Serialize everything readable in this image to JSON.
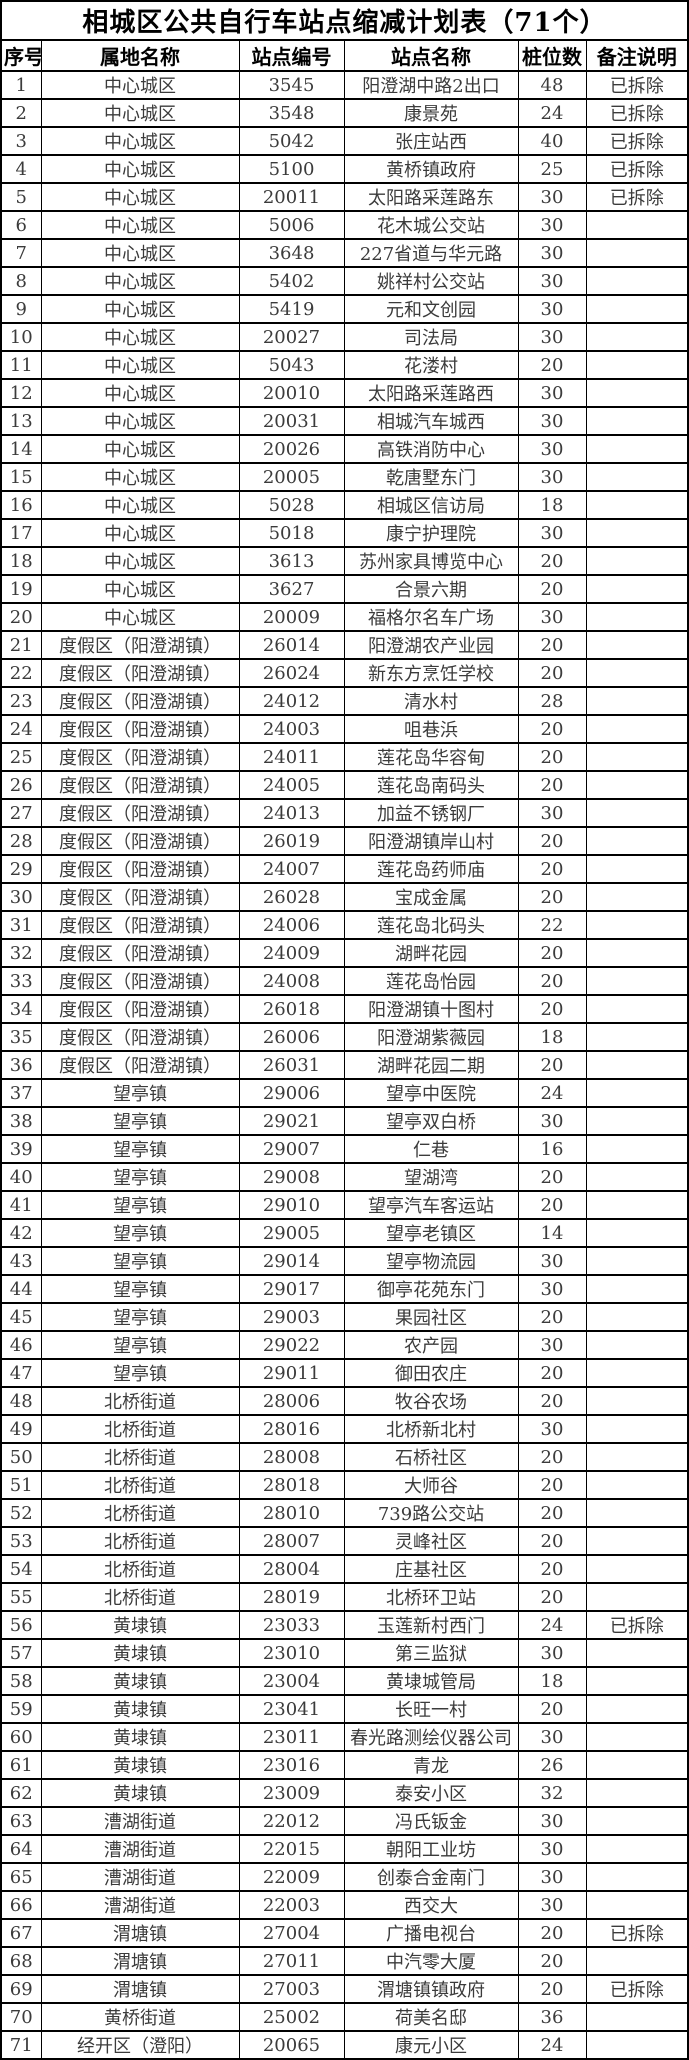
{
  "table": {
    "title": "相城区公共自行车站点缩减计划表（71个）",
    "columns": [
      "序号",
      "属地名称",
      "站点编号",
      "站点名称",
      "桩位数",
      "备注说明"
    ],
    "remark_removed_label": "已拆除",
    "rows": [
      [
        "1",
        "中心城区",
        "3545",
        "阳澄湖中路2出口",
        "48",
        "已拆除"
      ],
      [
        "2",
        "中心城区",
        "3548",
        "康景苑",
        "24",
        "已拆除"
      ],
      [
        "3",
        "中心城区",
        "5042",
        "张庄站西",
        "40",
        "已拆除"
      ],
      [
        "4",
        "中心城区",
        "5100",
        "黄桥镇政府",
        "25",
        "已拆除"
      ],
      [
        "5",
        "中心城区",
        "20011",
        "太阳路采莲路东",
        "30",
        "已拆除"
      ],
      [
        "6",
        "中心城区",
        "5006",
        "花木城公交站",
        "30",
        ""
      ],
      [
        "7",
        "中心城区",
        "3648",
        "227省道与华元路",
        "30",
        ""
      ],
      [
        "8",
        "中心城区",
        "5402",
        "姚祥村公交站",
        "30",
        ""
      ],
      [
        "9",
        "中心城区",
        "5419",
        "元和文创园",
        "30",
        ""
      ],
      [
        "10",
        "中心城区",
        "20027",
        "司法局",
        "30",
        ""
      ],
      [
        "11",
        "中心城区",
        "5043",
        "花溇村",
        "20",
        ""
      ],
      [
        "12",
        "中心城区",
        "20010",
        "太阳路采莲路西",
        "30",
        ""
      ],
      [
        "13",
        "中心城区",
        "20031",
        "相城汽车城西",
        "30",
        ""
      ],
      [
        "14",
        "中心城区",
        "20026",
        "高铁消防中心",
        "30",
        ""
      ],
      [
        "15",
        "中心城区",
        "20005",
        "乾唐墅东门",
        "30",
        ""
      ],
      [
        "16",
        "中心城区",
        "5028",
        "相城区信访局",
        "18",
        ""
      ],
      [
        "17",
        "中心城区",
        "5018",
        "康宁护理院",
        "30",
        ""
      ],
      [
        "18",
        "中心城区",
        "3613",
        "苏州家具博览中心",
        "20",
        ""
      ],
      [
        "19",
        "中心城区",
        "3627",
        "合景六期",
        "20",
        ""
      ],
      [
        "20",
        "中心城区",
        "20009",
        "福格尔名车广场",
        "30",
        ""
      ],
      [
        "21",
        "度假区（阳澄湖镇）",
        "26014",
        "阳澄湖农产业园",
        "20",
        ""
      ],
      [
        "22",
        "度假区（阳澄湖镇）",
        "26024",
        "新东方烹饪学校",
        "20",
        ""
      ],
      [
        "23",
        "度假区（阳澄湖镇）",
        "24012",
        "清水村",
        "28",
        ""
      ],
      [
        "24",
        "度假区（阳澄湖镇）",
        "24003",
        "咀巷浜",
        "20",
        ""
      ],
      [
        "25",
        "度假区（阳澄湖镇）",
        "24011",
        "莲花岛华容甸",
        "20",
        ""
      ],
      [
        "26",
        "度假区（阳澄湖镇）",
        "24005",
        "莲花岛南码头",
        "20",
        ""
      ],
      [
        "27",
        "度假区（阳澄湖镇）",
        "24013",
        "加益不锈钢厂",
        "30",
        ""
      ],
      [
        "28",
        "度假区（阳澄湖镇）",
        "26019",
        "阳澄湖镇岸山村",
        "20",
        ""
      ],
      [
        "29",
        "度假区（阳澄湖镇）",
        "24007",
        "莲花岛药师庙",
        "20",
        ""
      ],
      [
        "30",
        "度假区（阳澄湖镇）",
        "26028",
        "宝成金属",
        "20",
        ""
      ],
      [
        "31",
        "度假区（阳澄湖镇）",
        "24006",
        "莲花岛北码头",
        "22",
        ""
      ],
      [
        "32",
        "度假区（阳澄湖镇）",
        "24009",
        "湖畔花园",
        "20",
        ""
      ],
      [
        "33",
        "度假区（阳澄湖镇）",
        "24008",
        "莲花岛怡园",
        "20",
        ""
      ],
      [
        "34",
        "度假区（阳澄湖镇）",
        "26018",
        "阳澄湖镇十图村",
        "20",
        ""
      ],
      [
        "35",
        "度假区（阳澄湖镇）",
        "26006",
        "阳澄湖紫薇园",
        "18",
        ""
      ],
      [
        "36",
        "度假区（阳澄湖镇）",
        "26031",
        "湖畔花园二期",
        "20",
        ""
      ],
      [
        "37",
        "望亭镇",
        "29006",
        "望亭中医院",
        "24",
        ""
      ],
      [
        "38",
        "望亭镇",
        "29021",
        "望亭双白桥",
        "30",
        ""
      ],
      [
        "39",
        "望亭镇",
        "29007",
        "仁巷",
        "16",
        ""
      ],
      [
        "40",
        "望亭镇",
        "29008",
        "望湖湾",
        "20",
        ""
      ],
      [
        "41",
        "望亭镇",
        "29010",
        "望亭汽车客运站",
        "20",
        ""
      ],
      [
        "42",
        "望亭镇",
        "29005",
        "望亭老镇区",
        "14",
        ""
      ],
      [
        "43",
        "望亭镇",
        "29014",
        "望亭物流园",
        "30",
        ""
      ],
      [
        "44",
        "望亭镇",
        "29017",
        "御亭花苑东门",
        "30",
        ""
      ],
      [
        "45",
        "望亭镇",
        "29003",
        "果园社区",
        "20",
        ""
      ],
      [
        "46",
        "望亭镇",
        "29022",
        "农产园",
        "30",
        ""
      ],
      [
        "47",
        "望亭镇",
        "29011",
        "御田农庄",
        "20",
        ""
      ],
      [
        "48",
        "北桥街道",
        "28006",
        "牧谷农场",
        "20",
        ""
      ],
      [
        "49",
        "北桥街道",
        "28016",
        "北桥新北村",
        "30",
        ""
      ],
      [
        "50",
        "北桥街道",
        "28008",
        "石桥社区",
        "20",
        ""
      ],
      [
        "51",
        "北桥街道",
        "28018",
        "大师谷",
        "20",
        ""
      ],
      [
        "52",
        "北桥街道",
        "28010",
        "739路公交站",
        "20",
        ""
      ],
      [
        "53",
        "北桥街道",
        "28007",
        "灵峰社区",
        "20",
        ""
      ],
      [
        "54",
        "北桥街道",
        "28004",
        "庄基社区",
        "20",
        ""
      ],
      [
        "55",
        "北桥街道",
        "28019",
        "北桥环卫站",
        "20",
        ""
      ],
      [
        "56",
        "黄埭镇",
        "23033",
        "玉莲新村西门",
        "24",
        "已拆除"
      ],
      [
        "57",
        "黄埭镇",
        "23010",
        "第三监狱",
        "30",
        ""
      ],
      [
        "58",
        "黄埭镇",
        "23004",
        "黄埭城管局",
        "18",
        ""
      ],
      [
        "59",
        "黄埭镇",
        "23041",
        "长旺一村",
        "20",
        ""
      ],
      [
        "60",
        "黄埭镇",
        "23011",
        "春光路测绘仪器公司",
        "30",
        ""
      ],
      [
        "61",
        "黄埭镇",
        "23016",
        "青龙",
        "26",
        ""
      ],
      [
        "62",
        "黄埭镇",
        "23009",
        "泰安小区",
        "32",
        ""
      ],
      [
        "63",
        "漕湖街道",
        "22012",
        "冯氏钣金",
        "30",
        ""
      ],
      [
        "64",
        "漕湖街道",
        "22015",
        "朝阳工业坊",
        "30",
        ""
      ],
      [
        "65",
        "漕湖街道",
        "22009",
        "创泰合金南门",
        "30",
        ""
      ],
      [
        "66",
        "漕湖街道",
        "22003",
        "西交大",
        "30",
        ""
      ],
      [
        "67",
        "渭塘镇",
        "27004",
        "广播电视台",
        "20",
        "已拆除"
      ],
      [
        "68",
        "渭塘镇",
        "27011",
        "中汽零大厦",
        "20",
        ""
      ],
      [
        "69",
        "渭塘镇",
        "27003",
        "渭塘镇镇政府",
        "20",
        "已拆除"
      ],
      [
        "70",
        "黄桥街道",
        "25002",
        "荷美名邸",
        "36",
        ""
      ],
      [
        "71",
        "经开区（澄阳）",
        "20065",
        "康元小区",
        "24",
        ""
      ]
    ]
  }
}
